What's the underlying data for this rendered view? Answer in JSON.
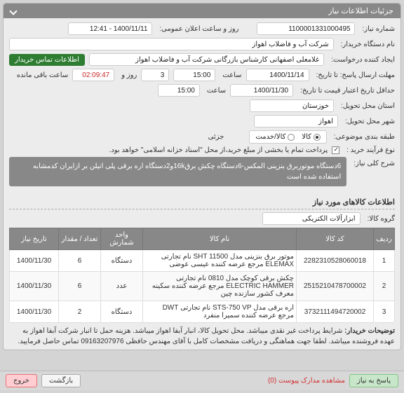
{
  "panel": {
    "title": "جزئیات اطلاعات نیاز"
  },
  "fields": {
    "need_no_label": "شماره نیاز:",
    "need_no": "1100001331000495",
    "announce_label": "روز و ساعت اعلان عمومی:",
    "announce_value": "1400/11/11 - 12:41",
    "buyer_org_label": "نام دستگاه خریدار:",
    "buyer_org": "شرکت آب و فاضلاب اهواز",
    "requester_label": "ایجاد کننده درخواست:",
    "requester": "غلامعلی اصفهانی کارشناس بازرگانی شرکت آب و فاضلاب اهواز",
    "contact_btn": "اطلاعات تماس خریدار",
    "deadline_label": "مهلت ارسال پاسخ: تا تاریخ:",
    "deadline_date": "1400/11/14",
    "time_label": "ساعت",
    "deadline_time": "15:00",
    "days_label": "روز و",
    "days_value": "3",
    "remaining_label": "ساعت باقی مانده",
    "remaining_time": "02:09:47",
    "validity_label": "حداقل تاریخ اعتبار قیمت تا تاریخ:",
    "validity_date": "1400/11/30",
    "validity_time": "15:00",
    "province_label": "استان محل تحویل:",
    "province": "خوزستان",
    "city_label": "شهر محل تحویل:",
    "city": "اهواز",
    "category_label": "طبقه بندی موضوعی:",
    "radio_goods": "کالا",
    "radio_service": "کالا/خدمت",
    "partial_label": "جزئی",
    "process_label": "نوع فرآیند خرید :",
    "process_note": "پرداخت تمام یا بخشی از مبلغ خرید،از محل \"اسناد خزانه اسلامی\" خواهد بود."
  },
  "summary": {
    "label": "شرح کلی نیاز:",
    "text": "6دستگاه موتوربرق بنزینی المکس-6دستگاه چکش برق16kو2دستگاه اره برقی پلی اتیلن بر ازایران کدمشابه استفاده شده است"
  },
  "items_section": {
    "title": "اطلاعات کالاهای مورد نیاز",
    "group_label": "گروه کالا:",
    "group_value": "ابزارآلات الکتریکی"
  },
  "table": {
    "columns": [
      "ردیف",
      "کد کالا",
      "نام کالا",
      "واحد شمارش",
      "تعداد / مقدار",
      "تاریخ نیاز"
    ],
    "col_widths": [
      "30px",
      "110px",
      "auto",
      "60px",
      "60px",
      "70px"
    ],
    "rows": [
      [
        "1",
        "2282310528060018",
        "موتور برق بنزینی مدل SHT 11500 نام تجارتی ELEMAX مرجع عرضه کننده عیسی عوضی",
        "دستگاه",
        "6",
        "1400/11/30"
      ],
      [
        "2",
        "2515210478700002",
        "چکش برقی کوچک مدل 0810 نام تجارتی ELECTRIC HAMMER مرجع عرضه کننده سکینه معرف کشور سازنده چین",
        "عدد",
        "6",
        "1400/11/30"
      ],
      [
        "3",
        "3732111494720002",
        "اره برقی مدل STS-750 VP نام تجارتی DWT مرجع عرضه کننده سمیرا منفرد",
        "دستگاه",
        "2",
        "1400/11/30"
      ]
    ]
  },
  "notes": {
    "label": "توضیحات خریدار:",
    "text": "شرایط پرداخت غیر نقدی میباشد. محل تحویل کالا، انبار آبفا اهواز میباشد. هزینه حمل تا انبار شرکت آبفا اهواز به عهده فروشنده میباشد. لطفا جهت هماهنگی و دریافت مشخصات کامل با آقای مهندس حافظی 09163207976 تماس حاصل فرمایید."
  },
  "footer": {
    "respond": "پاسخ به نیاز",
    "docs": "مشاهده مدارک پیوست (0)",
    "back": "بازگشت",
    "exit": "خروج"
  }
}
